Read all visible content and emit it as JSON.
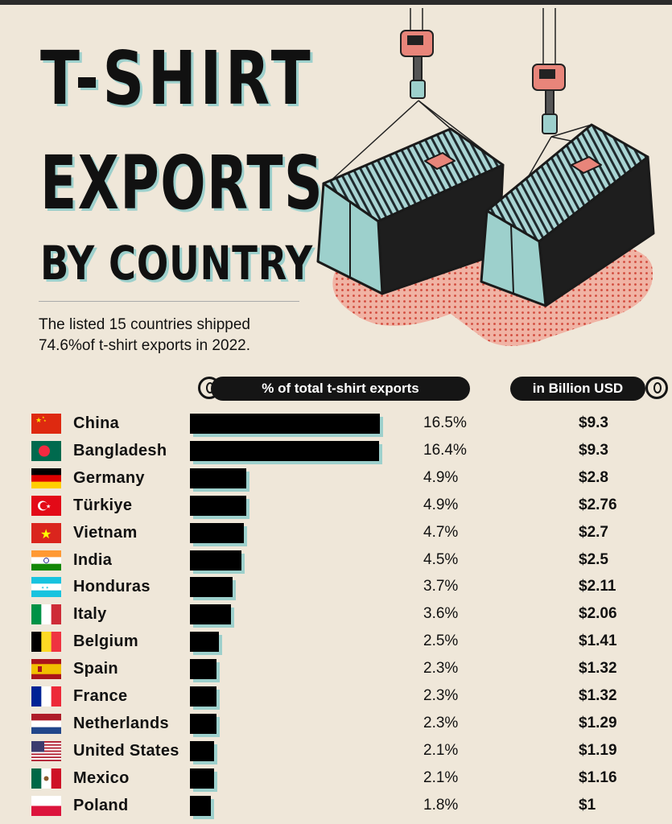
{
  "header": {
    "title_line1": "T-SHIRT",
    "title_line2": "EXPORTS",
    "title_line3": "BY COUNTRY",
    "subtitle": "The listed 15 countries shipped 74.6%of t-shirt exports in 2022."
  },
  "columns": {
    "share_header": "% of total t-shirt exports",
    "value_header": "in Billion USD"
  },
  "colors": {
    "background": "#efe7d9",
    "bar": "#000000",
    "bar_shadow": "#9dd0cc"
  },
  "chart_data": {
    "type": "bar",
    "orientation": "horizontal",
    "categories": [
      "China",
      "Bangladesh",
      "Germany",
      "Türkiye",
      "Vietnam",
      "India",
      "Honduras",
      "Italy",
      "Belgium",
      "Spain",
      "France",
      "Netherlands",
      "United States",
      "Mexico",
      "Poland"
    ],
    "percent_labels": [
      "16.5%",
      "16.4%",
      "4.9%",
      "4.9%",
      "4.7%",
      "4.5%",
      "3.7%",
      "3.6%",
      "2.5%",
      "2.3%",
      "2.3%",
      "2.3%",
      "2.1%",
      "2.1%",
      "1.8%"
    ],
    "usd_labels": [
      "$9.3",
      "$9.3",
      "$2.8",
      "$2.76",
      "$2.7",
      "$2.5",
      "$2.11",
      "$2.06",
      "$1.41",
      "$1.32",
      "$1.32",
      "$1.29",
      "$1.19",
      "$1.16",
      "$1"
    ],
    "flag_icons": [
      "china-flag-icon",
      "bangladesh-flag-icon",
      "germany-flag-icon",
      "turkiye-flag-icon",
      "vietnam-flag-icon",
      "india-flag-icon",
      "honduras-flag-icon",
      "italy-flag-icon",
      "belgium-flag-icon",
      "spain-flag-icon",
      "france-flag-icon",
      "netherlands-flag-icon",
      "united-states-flag-icon",
      "mexico-flag-icon",
      "poland-flag-icon"
    ],
    "series": [
      {
        "values": [
          16.5,
          16.4,
          4.9,
          4.9,
          4.7,
          4.5,
          3.7,
          3.6,
          2.5,
          2.3,
          2.3,
          2.3,
          2.1,
          2.1,
          1.8
        ]
      },
      {
        "values": [
          9.3,
          9.3,
          2.8,
          2.76,
          2.7,
          2.5,
          2.11,
          2.06,
          1.41,
          1.32,
          1.32,
          1.29,
          1.19,
          1.16,
          1
        ]
      }
    ],
    "xlim": [
      0,
      16.5
    ],
    "grid": false
  }
}
